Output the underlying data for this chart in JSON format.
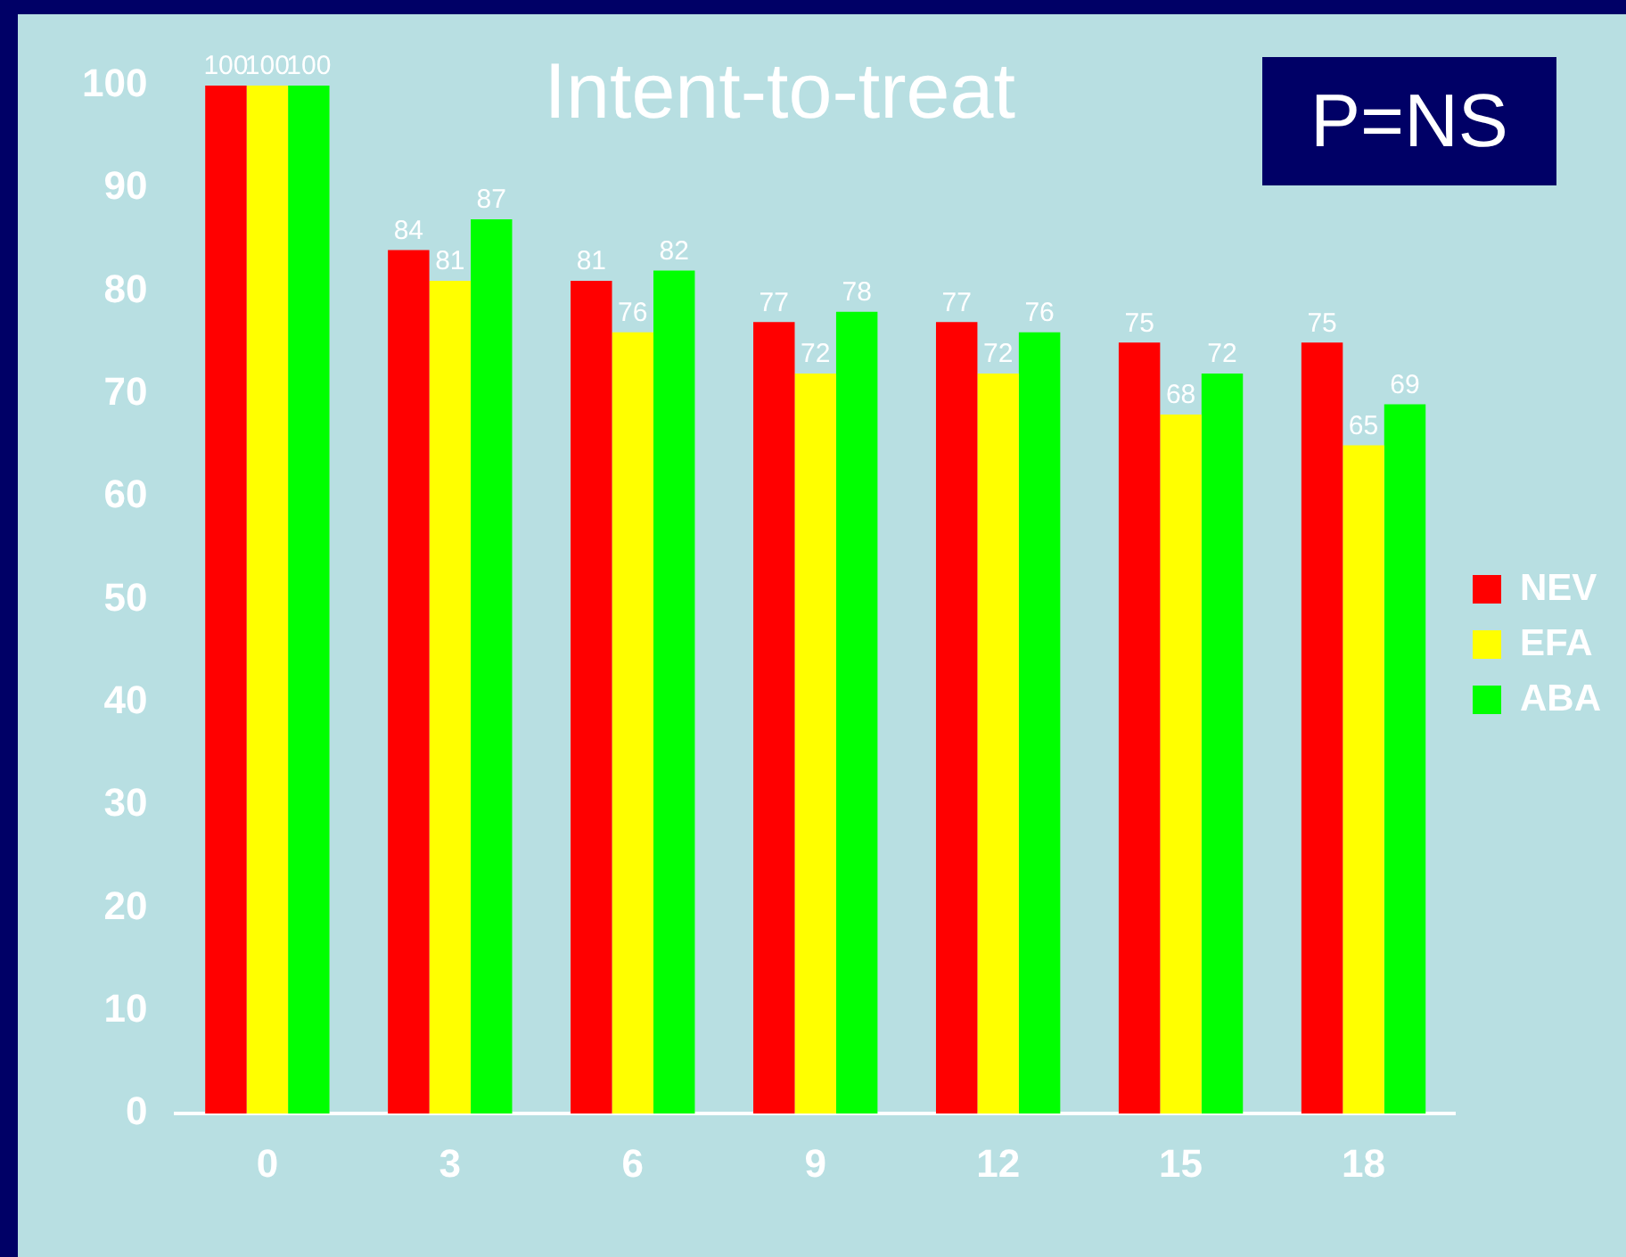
{
  "chart_data": {
    "type": "bar",
    "title": "Intent-to-treat",
    "categories": [
      "0",
      "3",
      "6",
      "9",
      "12",
      "15",
      "18"
    ],
    "series": [
      {
        "name": "NEV",
        "color": "#ff0000",
        "values": [
          100,
          84,
          81,
          77,
          77,
          75,
          75
        ]
      },
      {
        "name": "EFA",
        "color": "#ffff00",
        "values": [
          100,
          81,
          76,
          72,
          72,
          68,
          65
        ]
      },
      {
        "name": "ABA",
        "color": "#00ff00",
        "values": [
          100,
          87,
          82,
          78,
          76,
          72,
          69
        ]
      }
    ],
    "ylim": [
      0,
      100
    ],
    "yticks": [
      0,
      10,
      20,
      30,
      40,
      50,
      60,
      70,
      80,
      90,
      100
    ],
    "grid": false,
    "legend": "right",
    "data_labels": true,
    "annotations": [
      "P=NS"
    ]
  }
}
